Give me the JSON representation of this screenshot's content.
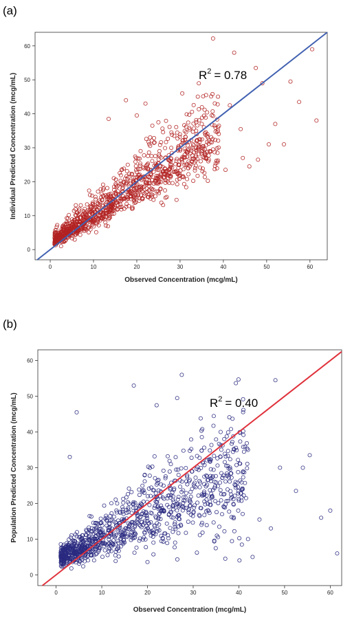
{
  "panels": [
    {
      "panel_label": "(a)",
      "annotation": {
        "label": "R",
        "sup": "2",
        "value": "= 0.78"
      },
      "colors": {
        "points": "#b22222",
        "line": "#4060b0"
      }
    },
    {
      "panel_label": "(b)",
      "annotation": {
        "label": "R",
        "sup": "2",
        "value": "= 0.40"
      },
      "colors": {
        "points": "#2a2a80",
        "line": "#e0323c"
      }
    }
  ],
  "chart_data": [
    {
      "type": "scatter",
      "xlabel": "Observed Concentration (mcg/mL)",
      "ylabel": "Individual Predicted Concentration (mcg/mL)",
      "xlim": [
        -3.5,
        64
      ],
      "ylim": [
        -3,
        64
      ],
      "x_ticks": [
        0,
        10,
        20,
        30,
        40,
        50,
        60
      ],
      "y_ticks": [
        0,
        10,
        20,
        30,
        40,
        50,
        60
      ],
      "grid": false,
      "reference_line": "identity",
      "outliers": [
        [
          42.5,
          58
        ],
        [
          47.5,
          53.5
        ],
        [
          60.5,
          59
        ],
        [
          55.5,
          49.5
        ],
        [
          49,
          49
        ],
        [
          57.5,
          43.5
        ],
        [
          36,
          45.5
        ],
        [
          30.5,
          46
        ],
        [
          17.5,
          44
        ],
        [
          22,
          43
        ],
        [
          41.5,
          42.5
        ],
        [
          20,
          39.5
        ],
        [
          13.5,
          38.5
        ],
        [
          61.5,
          38
        ],
        [
          52,
          37
        ],
        [
          44,
          35.5
        ],
        [
          33,
          31
        ],
        [
          50.5,
          31
        ],
        [
          54,
          31
        ],
        [
          40.5,
          23.5
        ],
        [
          46,
          24.5
        ],
        [
          25,
          37.5
        ],
        [
          28,
          34.5
        ],
        [
          44.5,
          27
        ],
        [
          48,
          26.5
        ],
        [
          2.5,
          1
        ],
        [
          3,
          2.5
        ]
      ],
      "cloud": {
        "n": 1150,
        "seed": 7,
        "x_max": 39,
        "slope": 0.83,
        "intercept": 1.8,
        "noise": 0.32,
        "upper_skew": 1.6
      },
      "r_squared": 0.78
    },
    {
      "type": "scatter",
      "xlabel": "Observed Concentration (mcg/mL)",
      "ylabel": "Population Predicted Concentration (mcg/mL)",
      "xlim": [
        -4,
        62.5
      ],
      "ylim": [
        -3,
        63
      ],
      "x_ticks": [
        0,
        10,
        20,
        30,
        40,
        50,
        60
      ],
      "y_ticks": [
        0,
        10,
        20,
        30,
        40,
        50,
        60
      ],
      "grid": false,
      "reference_line": "identity",
      "outliers": [
        [
          27.5,
          56
        ],
        [
          48,
          54.5
        ],
        [
          17,
          53
        ],
        [
          26.5,
          49.5
        ],
        [
          4.5,
          45.5
        ],
        [
          22,
          47.5
        ],
        [
          36,
          40
        ],
        [
          42,
          35
        ],
        [
          55.5,
          33.5
        ],
        [
          3,
          33
        ],
        [
          49,
          30
        ],
        [
          61.5,
          6
        ],
        [
          58,
          16
        ],
        [
          60,
          18
        ],
        [
          44.5,
          15.5
        ],
        [
          47,
          13
        ],
        [
          42,
          10
        ],
        [
          43,
          5
        ],
        [
          54,
          30
        ],
        [
          52.5,
          23.5
        ]
      ],
      "cloud": {
        "n": 1100,
        "seed": 13,
        "x_max": 42,
        "slope": 0.6,
        "intercept": 4.2,
        "noise": 0.52,
        "upper_skew": 1.2
      },
      "r_squared": 0.4
    }
  ]
}
